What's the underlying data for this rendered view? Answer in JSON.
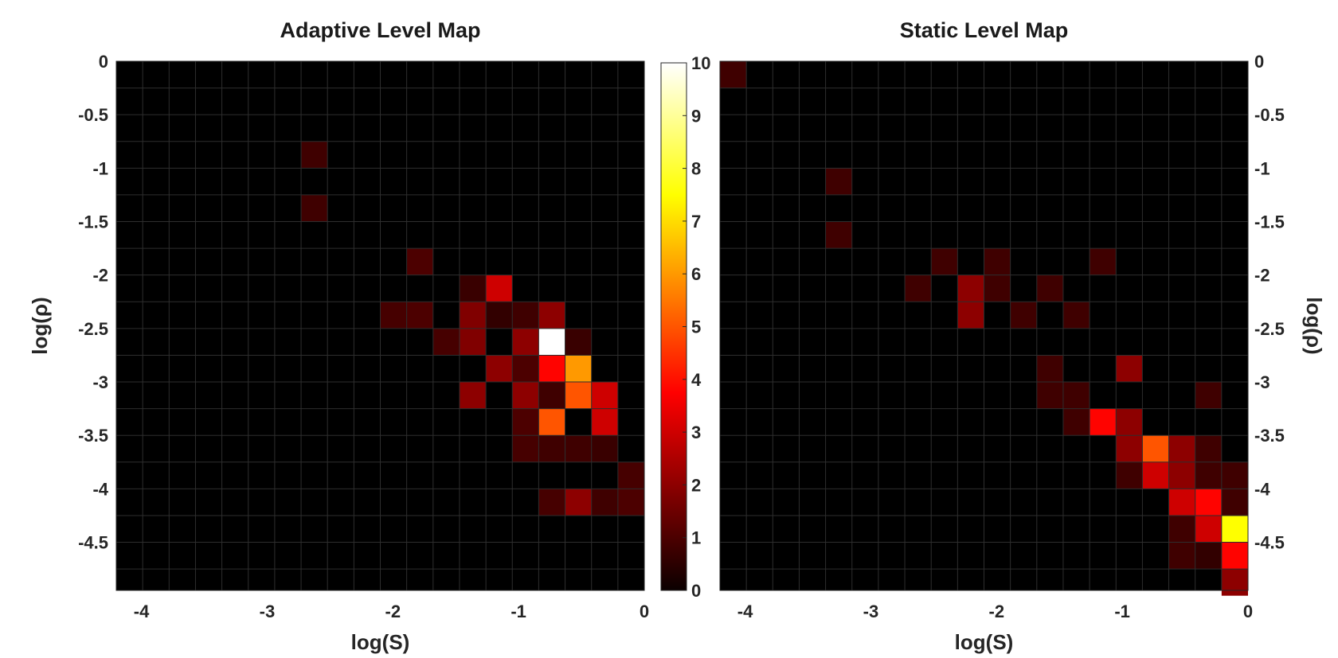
{
  "chart_data": [
    {
      "type": "heatmap",
      "title": "Adaptive Level Map",
      "xlabel": "log(S)",
      "ylabel": "log(ρ)",
      "xlim": [
        -4.2,
        0
      ],
      "ylim": [
        -4.95,
        0
      ],
      "xticks": [
        "-4",
        "-3",
        "-2",
        "-1",
        "0"
      ],
      "yticks": [
        "0",
        "-0.5",
        "-1",
        "-1.5",
        "-2",
        "-2.5",
        "-3",
        "-3.5",
        "-4",
        "-4.5"
      ],
      "ylabel_side": "left",
      "grid": true,
      "cells": [
        {
          "x": -2.625,
          "y": -0.875,
          "value": 0.8
        },
        {
          "x": -2.625,
          "y": -1.375,
          "value": 0.8
        },
        {
          "x": -1.785,
          "y": -1.875,
          "value": 1.0
        },
        {
          "x": -1.365,
          "y": -2.125,
          "value": 0.7
        },
        {
          "x": -1.155,
          "y": -2.125,
          "value": 3.0
        },
        {
          "x": -1.995,
          "y": -2.375,
          "value": 0.9
        },
        {
          "x": -1.785,
          "y": -2.375,
          "value": 1.0
        },
        {
          "x": -1.365,
          "y": -2.375,
          "value": 1.8
        },
        {
          "x": -1.155,
          "y": -2.375,
          "value": 0.6
        },
        {
          "x": -0.945,
          "y": -2.375,
          "value": 0.8
        },
        {
          "x": -0.735,
          "y": -2.375,
          "value": 2.0
        },
        {
          "x": -1.575,
          "y": -2.625,
          "value": 0.9
        },
        {
          "x": -1.365,
          "y": -2.625,
          "value": 1.8
        },
        {
          "x": -0.945,
          "y": -2.625,
          "value": 2.0
        },
        {
          "x": -0.735,
          "y": -2.625,
          "value": 10.0
        },
        {
          "x": -0.525,
          "y": -2.625,
          "value": 0.7
        },
        {
          "x": -1.155,
          "y": -2.875,
          "value": 2.0
        },
        {
          "x": -0.945,
          "y": -2.875,
          "value": 1.0
        },
        {
          "x": -0.735,
          "y": -2.875,
          "value": 3.8
        },
        {
          "x": -0.525,
          "y": -2.875,
          "value": 6.0
        },
        {
          "x": -1.365,
          "y": -3.125,
          "value": 2.0
        },
        {
          "x": -0.945,
          "y": -3.125,
          "value": 2.0
        },
        {
          "x": -0.735,
          "y": -3.125,
          "value": 0.8
        },
        {
          "x": -0.525,
          "y": -3.125,
          "value": 5.0
        },
        {
          "x": -0.315,
          "y": -3.125,
          "value": 3.0
        },
        {
          "x": -0.945,
          "y": -3.375,
          "value": 1.0
        },
        {
          "x": -0.735,
          "y": -3.375,
          "value": 5.0
        },
        {
          "x": -0.315,
          "y": -3.375,
          "value": 3.0
        },
        {
          "x": -0.945,
          "y": -3.625,
          "value": 0.9
        },
        {
          "x": -0.735,
          "y": -3.625,
          "value": 0.8
        },
        {
          "x": -0.525,
          "y": -3.625,
          "value": 0.8
        },
        {
          "x": -0.315,
          "y": -3.625,
          "value": 0.7
        },
        {
          "x": -0.105,
          "y": -3.875,
          "value": 0.9
        },
        {
          "x": -0.735,
          "y": -4.125,
          "value": 0.9
        },
        {
          "x": -0.525,
          "y": -4.125,
          "value": 2.0
        },
        {
          "x": -0.315,
          "y": -4.125,
          "value": 0.8
        },
        {
          "x": -0.105,
          "y": -4.125,
          "value": 1.0
        }
      ]
    },
    {
      "type": "heatmap",
      "title": "Static Level Map",
      "xlabel": "log(S)",
      "ylabel": "log(ρ)",
      "xlim": [
        -4.2,
        0
      ],
      "ylim": [
        -4.95,
        0
      ],
      "xticks": [
        "-4",
        "-3",
        "-2",
        "-1",
        "0"
      ],
      "yticks": [
        "0",
        "-0.5",
        "-1",
        "-1.5",
        "-2",
        "-2.5",
        "-3",
        "-3.5",
        "-4",
        "-4.5"
      ],
      "ylabel_side": "right",
      "grid": true,
      "cells": [
        {
          "x": -4.095,
          "y": -0.125,
          "value": 0.8
        },
        {
          "x": -3.255,
          "y": -1.125,
          "value": 0.8
        },
        {
          "x": -3.255,
          "y": -1.625,
          "value": 0.8
        },
        {
          "x": -2.415,
          "y": -1.875,
          "value": 0.8
        },
        {
          "x": -1.995,
          "y": -1.875,
          "value": 0.8
        },
        {
          "x": -1.155,
          "y": -1.875,
          "value": 0.8
        },
        {
          "x": -2.625,
          "y": -2.125,
          "value": 0.8
        },
        {
          "x": -2.205,
          "y": -2.125,
          "value": 2.0
        },
        {
          "x": -1.995,
          "y": -2.125,
          "value": 0.8
        },
        {
          "x": -1.575,
          "y": -2.125,
          "value": 0.8
        },
        {
          "x": -2.205,
          "y": -2.375,
          "value": 2.0
        },
        {
          "x": -1.785,
          "y": -2.375,
          "value": 0.8
        },
        {
          "x": -1.365,
          "y": -2.375,
          "value": 0.8
        },
        {
          "x": -1.575,
          "y": -3.125,
          "value": 0.8
        },
        {
          "x": -1.365,
          "y": -3.125,
          "value": 0.8
        },
        {
          "x": -0.945,
          "y": -2.875,
          "value": 2.0
        },
        {
          "x": -1.575,
          "y": -2.875,
          "value": 0.8
        },
        {
          "x": -0.315,
          "y": -3.125,
          "value": 0.8
        },
        {
          "x": -1.365,
          "y": -3.375,
          "value": 0.8
        },
        {
          "x": -1.155,
          "y": -3.375,
          "value": 3.8
        },
        {
          "x": -0.945,
          "y": -3.375,
          "value": 2.0
        },
        {
          "x": -0.945,
          "y": -3.625,
          "value": 2.0
        },
        {
          "x": -0.735,
          "y": -3.625,
          "value": 5.0
        },
        {
          "x": -0.525,
          "y": -3.625,
          "value": 2.0
        },
        {
          "x": -0.315,
          "y": -3.625,
          "value": 0.8
        },
        {
          "x": -0.945,
          "y": -3.875,
          "value": 0.8
        },
        {
          "x": -0.735,
          "y": -3.875,
          "value": 3.0
        },
        {
          "x": -0.525,
          "y": -3.875,
          "value": 2.0
        },
        {
          "x": -0.315,
          "y": -3.875,
          "value": 0.8
        },
        {
          "x": -0.105,
          "y": -3.875,
          "value": 0.8
        },
        {
          "x": -0.525,
          "y": -4.125,
          "value": 3.0
        },
        {
          "x": -0.315,
          "y": -4.125,
          "value": 3.8
        },
        {
          "x": -0.105,
          "y": -4.125,
          "value": 0.8
        },
        {
          "x": -0.525,
          "y": -4.375,
          "value": 0.8
        },
        {
          "x": -0.315,
          "y": -4.375,
          "value": 3.0
        },
        {
          "x": -0.105,
          "y": -4.375,
          "value": 7.5
        },
        {
          "x": -0.525,
          "y": -4.625,
          "value": 0.8
        },
        {
          "x": -0.315,
          "y": -4.625,
          "value": 0.6
        },
        {
          "x": -0.105,
          "y": -4.625,
          "value": 3.8
        },
        {
          "x": -0.105,
          "y": -4.875,
          "value": 2.0
        }
      ]
    }
  ],
  "colorbar": {
    "colormap": "hot",
    "range": [
      0,
      10
    ],
    "ticks": [
      "0",
      "1",
      "2",
      "3",
      "4",
      "5",
      "6",
      "7",
      "8",
      "9",
      "10"
    ]
  }
}
